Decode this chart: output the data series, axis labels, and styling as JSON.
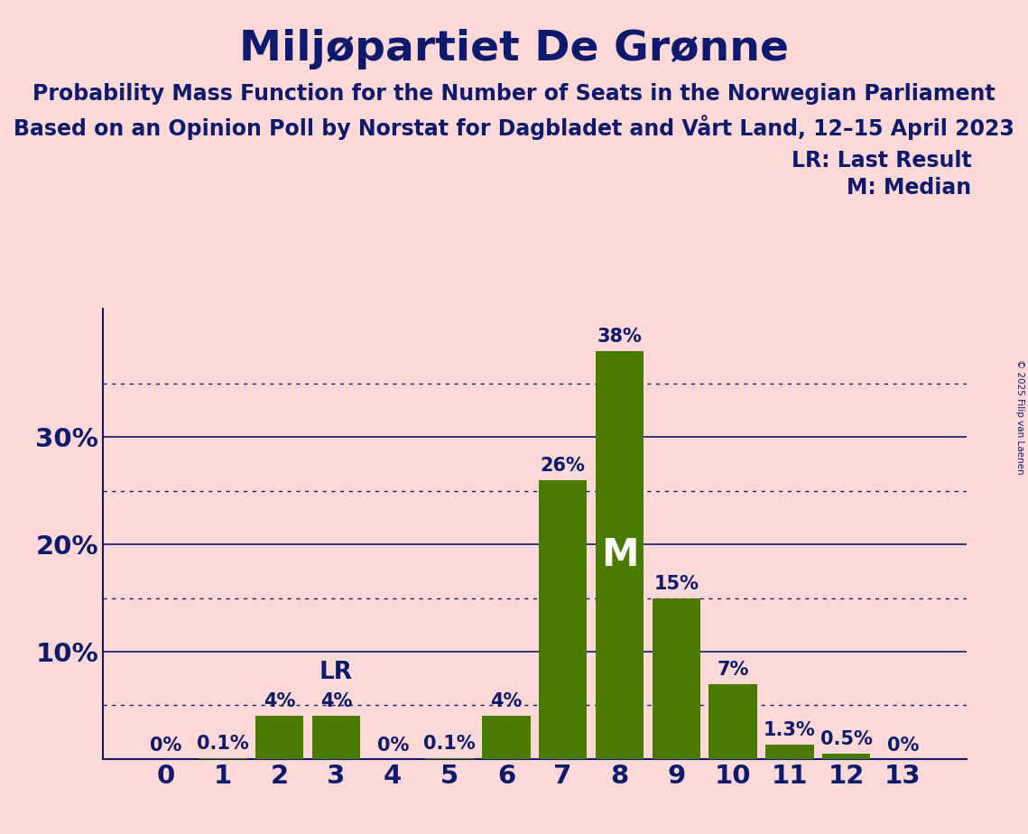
{
  "title": "Miljøpartiet De Grønne",
  "subtitle1": "Probability Mass Function for the Number of Seats in the Norwegian Parliament",
  "subtitle2": "Based on an Opinion Poll by Norstat for Dagbladet and Vårt Land, 12–15 April 2023",
  "copyright": "© 2025 Filip van Laenen",
  "legend_lr": "LR: Last Result",
  "legend_m": "M: Median",
  "categories": [
    0,
    1,
    2,
    3,
    4,
    5,
    6,
    7,
    8,
    9,
    10,
    11,
    12,
    13
  ],
  "values": [
    0.0,
    0.1,
    4.0,
    4.0,
    0.0,
    0.1,
    4.0,
    26.0,
    38.0,
    15.0,
    7.0,
    1.3,
    0.5,
    0.0
  ],
  "labels": [
    "0%",
    "0.1%",
    "4%",
    "4%",
    "0%",
    "0.1%",
    "4%",
    "26%",
    "38%",
    "15%",
    "7%",
    "1.3%",
    "0.5%",
    "0%"
  ],
  "bar_color": "#4a7a00",
  "background_color": "#ffd8d8",
  "text_color": "#0d1a6e",
  "lr_index": 3,
  "m_index": 8,
  "ylim_max": 42,
  "yticks": [
    10,
    20,
    30
  ],
  "ytick_labels": [
    "10%",
    "20%",
    "30%"
  ],
  "dotted_gridlines": [
    5,
    15,
    25,
    35
  ],
  "solid_gridlines": [
    10,
    20,
    30
  ],
  "title_fontsize": 34,
  "subtitle_fontsize": 17,
  "label_fontsize": 15,
  "axis_fontsize": 21,
  "legend_fontsize": 17,
  "m_fontsize": 30,
  "lr_fontsize": 19
}
